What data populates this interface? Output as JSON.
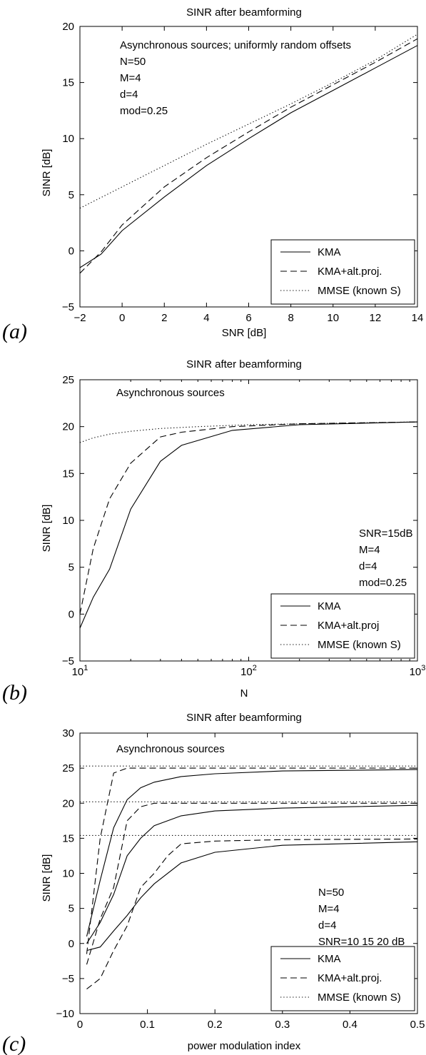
{
  "chart_data": [
    {
      "panel_label": "(a)",
      "type": "line",
      "title": "SINR after beamforming",
      "xlabel": "SNR [dB]",
      "ylabel": "SINR [dB]",
      "xscale": "linear",
      "xlim": [
        -2,
        14
      ],
      "ylim": [
        -5,
        20
      ],
      "xticks": [
        -2,
        0,
        2,
        4,
        6,
        8,
        10,
        12,
        14
      ],
      "yticks": [
        -5,
        0,
        5,
        10,
        15,
        20
      ],
      "xtick_labels": [
        "−2",
        "0",
        "2",
        "4",
        "6",
        "8",
        "10",
        "12",
        "14"
      ],
      "ytick_labels": [
        "−5",
        "0",
        "5",
        "10",
        "15",
        "20"
      ],
      "grid": false,
      "legend_position": "bottom-right",
      "annotation": [
        "Asynchronous sources; uniformly random offsets",
        "N=50",
        "M=4",
        "d=4",
        "mod=0.25"
      ],
      "series": [
        {
          "name": "KMA",
          "style": "solid",
          "x": [
            -2,
            -1,
            0,
            2,
            4,
            6,
            8,
            10,
            12,
            14
          ],
          "y": [
            -1.5,
            -0.3,
            1.8,
            4.8,
            7.6,
            10.0,
            12.3,
            14.3,
            16.3,
            18.3
          ]
        },
        {
          "name": "KMA+alt.proj.",
          "style": "dashed",
          "x": [
            -2,
            -1,
            0,
            2,
            4,
            6,
            8,
            10,
            12,
            14
          ],
          "y": [
            -2.0,
            -0.1,
            2.3,
            5.7,
            8.3,
            10.6,
            12.8,
            14.8,
            16.8,
            18.9
          ]
        },
        {
          "name": "MMSE (known S)",
          "style": "dotted",
          "x": [
            -2,
            0,
            2,
            4,
            6,
            8,
            10,
            12,
            14
          ],
          "y": [
            3.8,
            5.7,
            7.6,
            9.5,
            11.3,
            13.1,
            15.0,
            17.0,
            19.3
          ]
        }
      ]
    },
    {
      "panel_label": "(b)",
      "type": "line",
      "title": "SINR after beamforming",
      "xlabel": "N",
      "ylabel": "SINR [dB]",
      "xscale": "log",
      "xlim": [
        10,
        1000
      ],
      "ylim": [
        -5,
        25
      ],
      "xticks": [
        10,
        100,
        1000
      ],
      "yticks": [
        -5,
        0,
        5,
        10,
        15,
        20,
        25
      ],
      "xtick_labels": [
        "10",
        "10",
        "10"
      ],
      "xtick_exponents": [
        "1",
        "2",
        "3"
      ],
      "ytick_labels": [
        "−5",
        "0",
        "5",
        "10",
        "15",
        "20",
        "25"
      ],
      "grid": false,
      "legend_position": "bottom-right",
      "annotation": [
        "Asynchronous sources"
      ],
      "annotation2": [
        "SNR=15dB",
        "M=4",
        "d=4",
        "mod=0.25"
      ],
      "series": [
        {
          "name": "KMA",
          "style": "solid",
          "x": [
            10,
            12,
            15,
            20,
            30,
            40,
            80,
            200,
            1000
          ],
          "y": [
            -1.5,
            1.8,
            4.8,
            11.2,
            16.3,
            18.0,
            19.6,
            20.2,
            20.5
          ]
        },
        {
          "name": "KMA+alt.proj",
          "style": "dashed",
          "x": [
            10,
            12,
            15,
            20,
            30,
            40,
            80,
            200,
            1000
          ],
          "y": [
            0.0,
            7.0,
            12.3,
            16.1,
            18.9,
            19.4,
            20.0,
            20.3,
            20.5
          ]
        },
        {
          "name": "MMSE (known S)",
          "style": "dotted",
          "x": [
            10,
            12,
            15,
            20,
            30,
            50,
            100,
            200,
            1000
          ],
          "y": [
            18.3,
            18.8,
            19.2,
            19.5,
            19.8,
            20.0,
            20.2,
            20.3,
            20.5
          ]
        }
      ]
    },
    {
      "panel_label": "(c)",
      "type": "line",
      "title": "SINR after beamforming",
      "xlabel": "power modulation index",
      "ylabel": "SINR [dB]",
      "xscale": "linear",
      "xlim": [
        0,
        0.5
      ],
      "ylim": [
        -10,
        30
      ],
      "xticks": [
        0,
        0.1,
        0.2,
        0.3,
        0.4,
        0.5
      ],
      "yticks": [
        -10,
        -5,
        0,
        5,
        10,
        15,
        20,
        25,
        30
      ],
      "xtick_labels": [
        "0",
        "0.1",
        "0.2",
        "0.3",
        "0.4",
        "0.5"
      ],
      "ytick_labels": [
        "−10",
        "−5",
        "0",
        "5",
        "10",
        "15",
        "20",
        "25",
        "30"
      ],
      "grid": false,
      "legend_position": "bottom-right",
      "annotation": [
        "Asynchronous sources"
      ],
      "annotation2": [
        "N=50",
        "M=4",
        "d=4",
        "SNR=10 15 20 dB"
      ],
      "legend_entries": [
        {
          "name": "KMA",
          "style": "solid"
        },
        {
          "name": "KMA+alt.proj.",
          "style": "dashed"
        },
        {
          "name": "MMSE (known S)",
          "style": "dotted"
        }
      ],
      "series": [
        {
          "style": "solid",
          "x": [
            0.01,
            0.03,
            0.05,
            0.07,
            0.09,
            0.11,
            0.15,
            0.2,
            0.3,
            0.5
          ],
          "y": [
            -1.0,
            -0.5,
            1.8,
            4.0,
            6.5,
            8.5,
            11.5,
            13.0,
            14.0,
            14.5
          ]
        },
        {
          "style": "solid",
          "x": [
            0.01,
            0.03,
            0.05,
            0.07,
            0.09,
            0.11,
            0.15,
            0.2,
            0.3,
            0.5
          ],
          "y": [
            0.0,
            3.0,
            7.0,
            12.5,
            15.0,
            16.8,
            18.2,
            18.9,
            19.3,
            19.7
          ]
        },
        {
          "style": "solid",
          "x": [
            0.01,
            0.03,
            0.05,
            0.07,
            0.09,
            0.11,
            0.15,
            0.2,
            0.3,
            0.5
          ],
          "y": [
            1.0,
            9.0,
            16.5,
            20.5,
            22.2,
            23.0,
            23.8,
            24.2,
            24.6,
            24.8
          ]
        },
        {
          "style": "dashed",
          "x": [
            0.01,
            0.03,
            0.05,
            0.07,
            0.09,
            0.11,
            0.13,
            0.15,
            0.2,
            0.3,
            0.5
          ],
          "y": [
            -6.5,
            -5.0,
            -1.0,
            2.5,
            8.0,
            10.0,
            12.5,
            14.2,
            14.6,
            14.8,
            14.9
          ]
        },
        {
          "style": "dashed",
          "x": [
            0.01,
            0.03,
            0.05,
            0.07,
            0.09,
            0.11,
            0.15,
            0.2,
            0.3,
            0.5
          ],
          "y": [
            -3.0,
            3.5,
            8.0,
            17.5,
            19.5,
            20.0,
            20.0,
            20.0,
            20.0,
            20.0
          ]
        },
        {
          "style": "dashed",
          "x": [
            0.01,
            0.03,
            0.05,
            0.07,
            0.1,
            0.2,
            0.3,
            0.5
          ],
          "y": [
            -1.5,
            15.0,
            24.3,
            25.0,
            25.0,
            25.0,
            25.0,
            25.0
          ]
        },
        {
          "style": "dotted",
          "x": [
            0.0,
            0.5
          ],
          "y": [
            15.4,
            15.4
          ]
        },
        {
          "style": "dotted",
          "x": [
            0.0,
            0.5
          ],
          "y": [
            20.2,
            20.2
          ]
        },
        {
          "style": "dotted",
          "x": [
            0.0,
            0.5
          ],
          "y": [
            25.3,
            25.3
          ]
        }
      ]
    }
  ]
}
